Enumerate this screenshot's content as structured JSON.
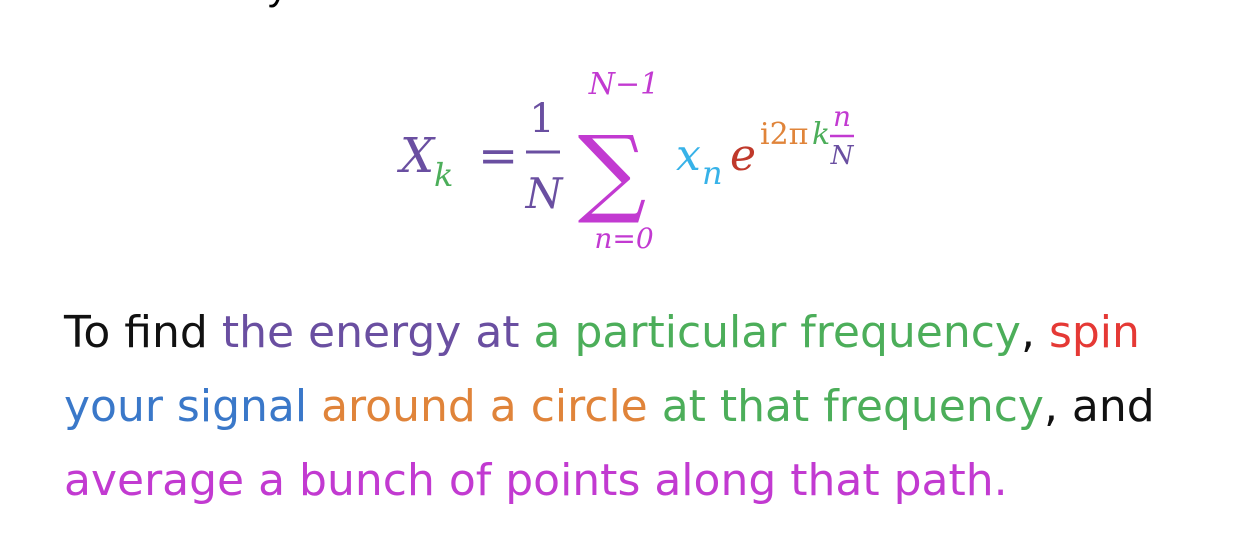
{
  "colors": {
    "black": "#111111",
    "purple": "#6a4fa1",
    "green": "#4cae5a",
    "red": "#e53935",
    "blue": "#3a78c9",
    "orange": "#e0843a",
    "magenta": "#c23ad1",
    "cyan": "#37b2e8"
  },
  "formula": {
    "lhs_X": "X",
    "lhs_k": "k",
    "equals": "=",
    "frac_num": "1",
    "frac_den": "N",
    "sum_symbol": "∑",
    "sum_upper": "N−1",
    "sum_lower": "n=0",
    "x": "x",
    "x_sub": "n",
    "e": "e",
    "exp_i2pi": "i2π",
    "exp_k": "k",
    "exp_frac_num": "n",
    "exp_frac_den": "N"
  },
  "caption": {
    "line1": [
      {
        "text": "To find ",
        "color": "black"
      },
      {
        "text": "the energy at ",
        "color": "purple"
      },
      {
        "text": "a particular frequency",
        "color": "green"
      },
      {
        "text": ", ",
        "color": "black"
      },
      {
        "text": "spin",
        "color": "red"
      }
    ],
    "line2": [
      {
        "text": "your signal ",
        "color": "blue"
      },
      {
        "text": "around a circle ",
        "color": "orange"
      },
      {
        "text": "at that frequency",
        "color": "green"
      },
      {
        "text": ", and",
        "color": "black"
      }
    ],
    "line3": [
      {
        "text": "average a bunch of points along that path.",
        "color": "magenta"
      }
    ]
  }
}
